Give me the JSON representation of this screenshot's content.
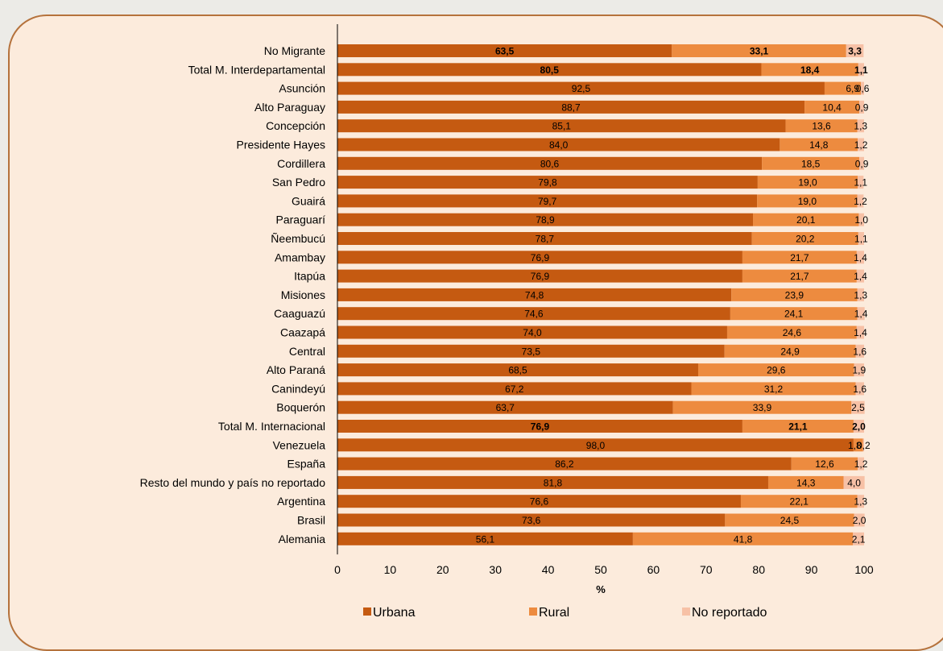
{
  "chart_data": {
    "type": "bar",
    "orientation": "horizontal",
    "stacked": true,
    "title": "",
    "xlabel": "%",
    "ylabel": "",
    "xlim": [
      0,
      100
    ],
    "xticks": [
      0,
      10,
      20,
      30,
      40,
      50,
      60,
      70,
      80,
      90,
      100
    ],
    "grid": false,
    "legend_position": "bottom",
    "categories": [
      "No Migrante",
      "Total M. Interdepartamental",
      "Asunción",
      "Alto Paraguay",
      "Concepción",
      "Presidente Hayes",
      "Cordillera",
      "San Pedro",
      "Guairá",
      "Paraguarí",
      "Ñeembucú",
      "Amambay",
      "Itapúa",
      "Misiones",
      "Caaguazú",
      "Caazapá",
      "Central",
      "Alto Paraná",
      "Canindeyú",
      "Boquerón",
      "Total M. Internacional",
      "Venezuela",
      "España",
      "Resto del mundo y país no reportado",
      "Argentina",
      "Brasil",
      "Alemania"
    ],
    "bold_categories": [
      "No Migrante",
      "Total M. Interdepartamental",
      "Total M. Internacional"
    ],
    "series": [
      {
        "name": "Urbana",
        "color": "#c55a11",
        "values": [
          63.5,
          80.5,
          92.5,
          88.7,
          85.1,
          84.0,
          80.6,
          79.8,
          79.7,
          78.9,
          78.7,
          76.9,
          76.9,
          74.8,
          74.6,
          74.0,
          73.5,
          68.5,
          67.2,
          63.7,
          76.9,
          98.0,
          86.2,
          81.8,
          76.6,
          73.6,
          56.1
        ],
        "labels": [
          "63,5",
          "80,5",
          "92,5",
          "88,7",
          "85,1",
          "84,0",
          "80,6",
          "79,8",
          "79,7",
          "78,9",
          "78,7",
          "76,9",
          "76,9",
          "74,8",
          "74,6",
          "74,0",
          "73,5",
          "68,5",
          "67,2",
          "63,7",
          "76,9",
          "98,0",
          "86,2",
          "81,8",
          "76,6",
          "73,6",
          "56,1"
        ]
      },
      {
        "name": "Rural",
        "color": "#ed8b3f",
        "values": [
          33.1,
          18.4,
          6.9,
          10.4,
          13.6,
          14.8,
          18.5,
          19.0,
          19.0,
          20.1,
          20.2,
          21.7,
          21.7,
          23.9,
          24.1,
          24.6,
          24.9,
          29.6,
          31.2,
          33.9,
          21.1,
          1.8,
          12.6,
          14.3,
          22.1,
          24.5,
          41.8
        ],
        "labels": [
          "33,1",
          "18,4",
          "6,9",
          "10,4",
          "13,6",
          "14,8",
          "18,5",
          "19,0",
          "19,0",
          "20,1",
          "20,2",
          "21,7",
          "21,7",
          "23,9",
          "24,1",
          "24,6",
          "24,9",
          "29,6",
          "31,2",
          "33,9",
          "21,1",
          "1,8",
          "12,6",
          "14,3",
          "22,1",
          "24,5",
          "41,8"
        ]
      },
      {
        "name": "No reportado",
        "color": "#f7c1a6",
        "values": [
          3.3,
          1.1,
          0.6,
          0.9,
          1.3,
          1.2,
          0.9,
          1.1,
          1.2,
          1.0,
          1.1,
          1.4,
          1.4,
          1.3,
          1.4,
          1.4,
          1.6,
          1.9,
          1.6,
          2.5,
          2.0,
          0.2,
          1.2,
          4.0,
          1.3,
          2.0,
          2.1
        ],
        "labels": [
          "3,3",
          "1,1",
          "0,6",
          "0,9",
          "1,3",
          "1,2",
          "0,9",
          "1,1",
          "1,2",
          "1,0",
          "1,1",
          "1,4",
          "1,4",
          "1,3",
          "1,4",
          "1,4",
          "1,6",
          "1,9",
          "1,6",
          "2,5",
          "2,0",
          "0,2",
          "1,2",
          "4,0",
          "1,3",
          "2,0",
          "2,1"
        ]
      }
    ]
  }
}
